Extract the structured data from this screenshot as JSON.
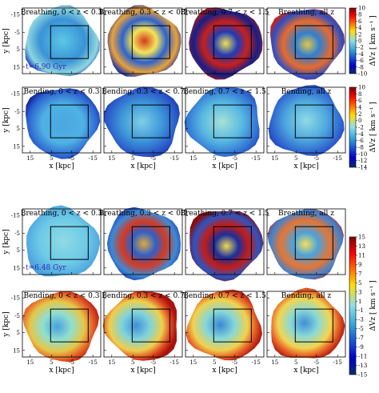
{
  "figure": {
    "groups": [
      {
        "time_label": "t=6.90 Gyr",
        "rows": [
          {
            "kind": "breathing",
            "titles": [
              "Breathing, 0 < z < 0.3",
              "Breathing, 0.3 < z < 0.7",
              "Breathing, 0.7 < z < 1.5",
              "Breathing, all z"
            ]
          },
          {
            "kind": "bending",
            "titles": [
              "Bending, 0 < z < 0.3",
              "Bending, 0.3 < z < 0.7",
              "Bending, 0.7 < z < 1.5",
              "Bending, all z"
            ]
          }
        ],
        "colorbars": [
          {
            "label": "ΔVz  [ km s⁻¹ ]",
            "ticks": [
              "10",
              "8",
              "6",
              "4",
              "2",
              "0",
              "-2",
              "-4",
              "-6",
              "-8",
              "-10"
            ],
            "range": [
              -10,
              10
            ]
          },
          {
            "label": "ΔVz  [ km s⁻¹ ]",
            "ticks": [
              "10",
              "8",
              "6",
              "4",
              "2",
              "0",
              "-2",
              "-4",
              "-6",
              "-8",
              "-10",
              "-12",
              "-14"
            ],
            "range": [
              -14,
              10
            ]
          }
        ]
      },
      {
        "time_label": "t=6.48 Gyr",
        "rows": [
          {
            "kind": "breathing",
            "titles": [
              "Breathing, 0 < z < 0.3",
              "Breathing, 0.3 < z < 0.7",
              "Breathing, 0.7 < z < 1.5",
              "Breathing, all z"
            ]
          },
          {
            "kind": "bending",
            "titles": [
              "Bending, 0 < z < 0.3",
              "Bending, 0.3 < z < 0.7",
              "Bending, 0.7 < z < 1.5",
              "Bending, all z"
            ]
          }
        ],
        "colorbars": [
          {
            "label": "ΔVz  [ km s⁻¹ ]",
            "ticks": [
              "15",
              "13",
              "11",
              "9",
              "7",
              "5",
              "3",
              "1",
              "-1",
              "-3",
              "-5",
              "-7",
              "-9",
              "-11",
              "-13",
              "-15"
            ],
            "range": [
              -15,
              15
            ]
          }
        ]
      }
    ],
    "axes": {
      "xlabel": "x [kpc]",
      "ylabel": "y [kpc]",
      "xticks": [
        "15",
        "5",
        "-5",
        "-15"
      ],
      "yticks": [
        "-15",
        "-5",
        "5",
        "15"
      ]
    },
    "colors": {
      "low": "#08306b",
      "mid": "#8ee0e8",
      "high": "#7f0000",
      "frame": "#000000",
      "time_label": "#2b2bb0"
    }
  }
}
